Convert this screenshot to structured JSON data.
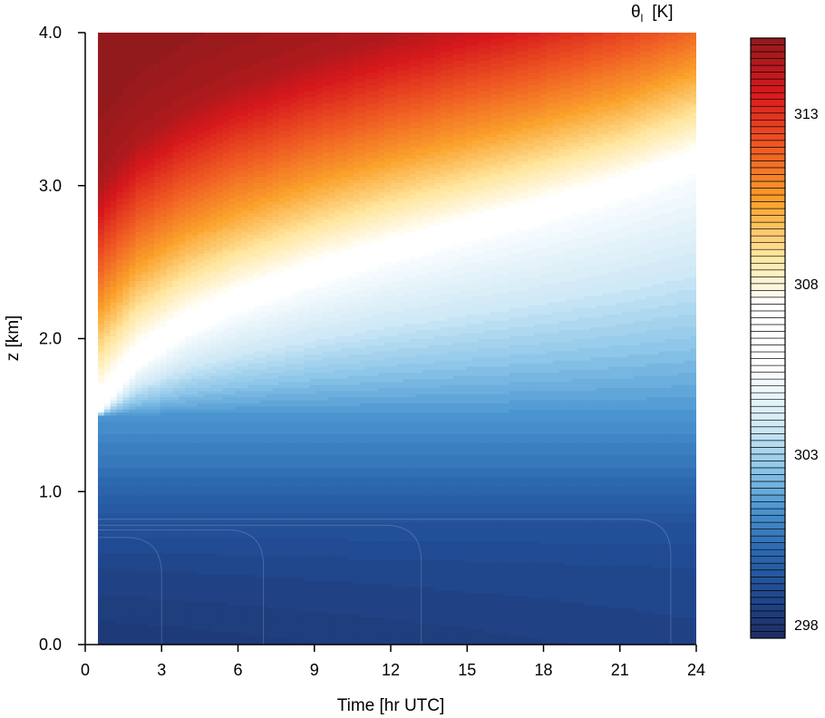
{
  "chart_data": {
    "type": "heatmap",
    "title": "",
    "variable_label": "θ",
    "variable_subscript": "l",
    "units_label": "[K]",
    "xlabel": "Time  [hr UTC]",
    "ylabel": "z [km]",
    "xlim": [
      0,
      24
    ],
    "ylim": [
      0,
      4
    ],
    "x_ticks": [
      0,
      3,
      6,
      9,
      12,
      15,
      18,
      21,
      24
    ],
    "x_tick_labels": [
      "0",
      "3",
      "6",
      "9",
      "12",
      "15",
      "18",
      "21",
      "24"
    ],
    "y_ticks": [
      0,
      1,
      2,
      3,
      4
    ],
    "y_tick_labels": [
      "0.0",
      "1.0",
      "2.0",
      "3.0",
      "4.0"
    ],
    "data_time_start": 0.5,
    "colorbar": {
      "min": 297.6,
      "max": 315.2,
      "step": 0.2,
      "ticks": [
        298,
        303,
        308,
        313
      ],
      "tick_labels": [
        "298",
        "303",
        "308",
        "313"
      ],
      "placement": "right"
    },
    "colormap_stops": [
      {
        "v": 297.6,
        "color": "#1c2d63"
      },
      {
        "v": 299.0,
        "color": "#214b93"
      },
      {
        "v": 300.2,
        "color": "#2d69b0"
      },
      {
        "v": 301.4,
        "color": "#4a95d0"
      },
      {
        "v": 302.6,
        "color": "#8ec7e9"
      },
      {
        "v": 303.8,
        "color": "#cfe9f6"
      },
      {
        "v": 305.6,
        "color": "#ffffff"
      },
      {
        "v": 307.4,
        "color": "#ffffff"
      },
      {
        "v": 308.8,
        "color": "#ffe7a0"
      },
      {
        "v": 310.4,
        "color": "#fba22c"
      },
      {
        "v": 312.0,
        "color": "#ef5a23"
      },
      {
        "v": 313.6,
        "color": "#d7191c"
      },
      {
        "v": 315.2,
        "color": "#921a1d"
      }
    ],
    "inversion_height_km": {
      "time_hr": [
        0.5,
        2,
        4,
        6,
        9,
        12,
        15,
        18,
        21,
        24
      ],
      "z_km": [
        1.5,
        1.8,
        2.02,
        2.17,
        2.35,
        2.5,
        2.63,
        2.76,
        2.9,
        3.08
      ]
    },
    "lower_layer_theta_K": [
      {
        "z_km": 0.0,
        "theta": 298.6
      },
      {
        "z_km": 0.5,
        "theta": 298.9
      },
      {
        "z_km": 0.8,
        "theta": 299.3
      },
      {
        "z_km": 1.0,
        "theta": 300.0
      },
      {
        "z_km": 1.2,
        "theta": 300.6
      },
      {
        "z_km": 1.5,
        "theta": 301.4
      }
    ],
    "upper_layer_theta_K": [
      {
        "dz_km": 0.0,
        "theta": 306.5
      },
      {
        "dz_km": 0.35,
        "theta": 308.6
      },
      {
        "dz_km": 0.7,
        "theta": 310.6
      },
      {
        "dz_km": 1.1,
        "theta": 312.6
      },
      {
        "dz_km": 1.5,
        "theta": 314.6
      },
      {
        "dz_km": 2.0,
        "theta": 315.2
      }
    ],
    "near_surface_contours": [
      {
        "theta": 297.9,
        "x_end_hr": 3.0,
        "z_top_km": 0.7
      },
      {
        "theta": 298.3,
        "x_end_hr": 7.0,
        "z_top_km": 0.75
      },
      {
        "theta": 298.7,
        "x_end_hr": 13.2,
        "z_top_km": 0.78
      },
      {
        "theta": 299.1,
        "x_end_hr": 23.0,
        "z_top_km": 0.82
      }
    ]
  }
}
